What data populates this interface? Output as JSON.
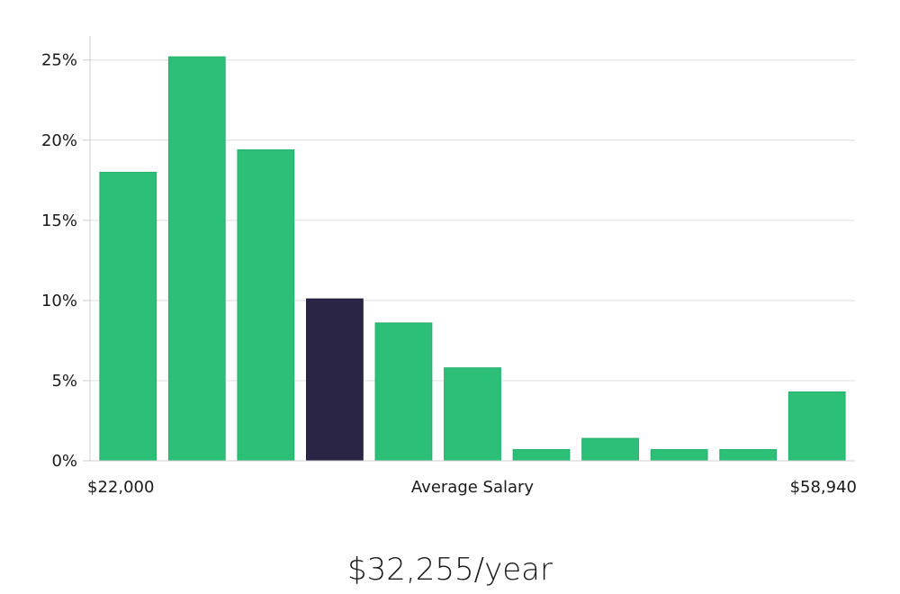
{
  "chart_data": {
    "type": "bar",
    "y_unit": "%",
    "ylim": [
      0,
      26.5
    ],
    "y_ticks": [
      0,
      5,
      10,
      15,
      20,
      25
    ],
    "y_tick_labels": [
      "0%",
      "5%",
      "10%",
      "15%",
      "20%",
      "25%"
    ],
    "grid": true,
    "values": [
      18.0,
      25.2,
      19.4,
      10.1,
      8.6,
      5.8,
      0.7,
      1.4,
      0.7,
      0.7,
      4.3
    ],
    "highlight_index": 3,
    "x_min_label": "$22,000",
    "xlabel": "Average Salary",
    "x_max_label": "$58,940"
  },
  "colors": {
    "bar": "#2bbf77",
    "bar_highlight": "#2a2545",
    "grid": "#e3e3e3",
    "axis": "#cccccc"
  },
  "summary": {
    "salary_text": "$32,255/year"
  }
}
